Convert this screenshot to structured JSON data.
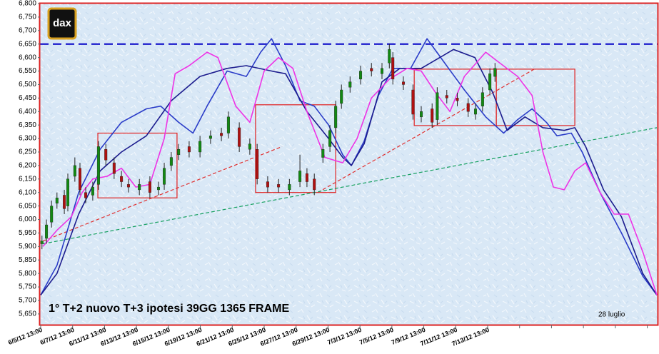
{
  "chart_data": {
    "type": "candlestick",
    "title": "1°  T+2  nuovo T+3 ipotesi 39GG 1365 FRAME",
    "annotation": "28 luglio",
    "logo": "dax",
    "ylim": [
      5610,
      6800
    ],
    "yticks": [
      {
        "value": 5650,
        "label": "5,650"
      },
      {
        "value": 5700,
        "label": "5,700"
      },
      {
        "value": 5750,
        "label": "5,750"
      },
      {
        "value": 5800,
        "label": "5,800"
      },
      {
        "value": 5850,
        "label": "5,850"
      },
      {
        "value": 5900,
        "label": "5,900"
      },
      {
        "value": 5950,
        "label": "5,950"
      },
      {
        "value": 6000,
        "label": "6,000"
      },
      {
        "value": 6050,
        "label": "6,050"
      },
      {
        "value": 6100,
        "label": "6,100"
      },
      {
        "value": 6150,
        "label": "6,150"
      },
      {
        "value": 6200,
        "label": "6,200"
      },
      {
        "value": 6250,
        "label": "6,250"
      },
      {
        "value": 6300,
        "label": "6,300"
      },
      {
        "value": 6350,
        "label": "6,350"
      },
      {
        "value": 6400,
        "label": "6,400"
      },
      {
        "value": 6450,
        "label": "6,450"
      },
      {
        "value": 6500,
        "label": "6,500"
      },
      {
        "value": 6550,
        "label": "6,550"
      },
      {
        "value": 6600,
        "label": "6,600"
      },
      {
        "value": 6650,
        "label": "6,650"
      },
      {
        "value": 6700,
        "label": "6,700"
      },
      {
        "value": 6750,
        "label": "6,750"
      },
      {
        "value": 6800,
        "label": "6,800"
      }
    ],
    "xlim": [
      0,
      19.3
    ],
    "xticks": [
      {
        "value": 0,
        "label": "6/5/12 13:00"
      },
      {
        "value": 1,
        "label": "6/7/12 13:00"
      },
      {
        "value": 2,
        "label": "6/11/12 13:00"
      },
      {
        "value": 3,
        "label": "6/13/12 13:00"
      },
      {
        "value": 4,
        "label": "6/15/12 13:00"
      },
      {
        "value": 5,
        "label": "6/19/12 13:00"
      },
      {
        "value": 6,
        "label": "6/21/12 13:00"
      },
      {
        "value": 7,
        "label": "6/25/12 13:00"
      },
      {
        "value": 8,
        "label": "6/27/12 13:00"
      },
      {
        "value": 9,
        "label": "6/29/12 13:00"
      },
      {
        "value": 10,
        "label": "7/3/12 13:00"
      },
      {
        "value": 11,
        "label": "7/5/12 13:00"
      },
      {
        "value": 12,
        "label": "7/9/12 13:00"
      },
      {
        "value": 13,
        "label": "7/11/12 13:00"
      },
      {
        "value": 14,
        "label": "7/13/12 13:00"
      },
      {
        "value": 15,
        "label": null
      },
      {
        "value": 16,
        "label": null
      },
      {
        "value": 17,
        "label": null
      },
      {
        "value": 18,
        "label": null
      },
      {
        "value": 19,
        "label": null
      }
    ],
    "candles": {
      "up_color": "#128a12",
      "down_color": "#b01010",
      "x": [
        0.04,
        0.18,
        0.34,
        0.51,
        0.74,
        0.85,
        1.07,
        1.23,
        1.41,
        1.63,
        1.81,
        2.04,
        2.3,
        2.53,
        2.75,
        3.09,
        3.42,
        3.69,
        3.87,
        4.09,
        4.32,
        4.65,
        4.99,
        5.32,
        5.66,
        5.88,
        6.22,
        6.55,
        6.78,
        7.11,
        7.45,
        7.79,
        8.12,
        8.34,
        8.57,
        8.84,
        9.06,
        9.24,
        9.42,
        9.69,
        10.02,
        10.36,
        10.69,
        10.92,
        11.03,
        11.36,
        11.66,
        11.92,
        12.26,
        12.42,
        12.72,
        13.05,
        13.39,
        13.62,
        13.84,
        14.07,
        14.23
      ],
      "open": [
        5910,
        5930,
        5990,
        6060,
        6090,
        6050,
        6160,
        6190,
        6100,
        6090,
        6130,
        6260,
        6210,
        6160,
        6130,
        6110,
        6140,
        6110,
        6130,
        6200,
        6240,
        6270,
        6250,
        6300,
        6320,
        6320,
        6340,
        6260,
        6260,
        6140,
        6130,
        6110,
        6140,
        6170,
        6150,
        6230,
        6270,
        6340,
        6430,
        6490,
        6520,
        6560,
        6540,
        6580,
        6600,
        6510,
        6480,
        6380,
        6410,
        6370,
        6460,
        6450,
        6430,
        6390,
        6420,
        6480,
        6530
      ],
      "high": [
        5940,
        6000,
        6070,
        6100,
        6110,
        6170,
        6230,
        6210,
        6120,
        6140,
        6290,
        6280,
        6230,
        6180,
        6150,
        6150,
        6160,
        6140,
        6210,
        6250,
        6280,
        6290,
        6310,
        6330,
        6340,
        6400,
        6360,
        6300,
        6280,
        6160,
        6150,
        6150,
        6240,
        6190,
        6170,
        6280,
        6350,
        6440,
        6500,
        6530,
        6570,
        6580,
        6580,
        6650,
        6620,
        6530,
        6500,
        6420,
        6430,
        6490,
        6480,
        6470,
        6450,
        6430,
        6490,
        6560,
        6580
      ],
      "low": [
        5890,
        5910,
        5970,
        6040,
        6020,
        6030,
        6140,
        6090,
        6060,
        6070,
        6110,
        6200,
        6150,
        6120,
        6100,
        6090,
        6080,
        6090,
        6110,
        6180,
        6220,
        6230,
        6230,
        6280,
        6290,
        6300,
        6250,
        6240,
        6130,
        6100,
        6100,
        6090,
        6120,
        6120,
        6090,
        6210,
        6250,
        6320,
        6410,
        6470,
        6500,
        6530,
        6520,
        6560,
        6500,
        6480,
        6370,
        6360,
        6340,
        6350,
        6430,
        6420,
        6380,
        6370,
        6400,
        6460,
        6510
      ],
      "close": [
        5920,
        5980,
        6050,
        6080,
        6040,
        6150,
        6200,
        6110,
        6080,
        6120,
        6270,
        6220,
        6170,
        6140,
        6120,
        6130,
        6100,
        6120,
        6190,
        6230,
        6260,
        6250,
        6290,
        6310,
        6310,
        6380,
        6270,
        6280,
        6150,
        6120,
        6120,
        6130,
        6180,
        6140,
        6110,
        6260,
        6330,
        6420,
        6480,
        6510,
        6550,
        6550,
        6560,
        6630,
        6520,
        6500,
        6390,
        6400,
        6360,
        6470,
        6450,
        6440,
        6400,
        6410,
        6470,
        6540,
        6560
      ]
    },
    "series": [
      {
        "color": "#2a3cc8",
        "x": [
          0,
          0.51,
          1.19,
          1.86,
          2.53,
          3.31,
          3.76,
          4.32,
          4.77,
          5.21,
          5.84,
          6.44,
          6.89,
          7.23,
          7.67,
          8.12,
          8.57,
          9.02,
          9.46,
          9.73,
          10.13,
          10.58,
          11.03,
          11.59,
          12.1,
          12.59,
          13.27,
          13.94,
          14.5,
          14.94,
          15.39,
          15.84,
          16.17,
          16.62,
          16.96,
          17.52,
          18.19,
          18.86,
          19.3
        ],
        "values": [
          5720,
          5830,
          6100,
          6260,
          6360,
          6410,
          6420,
          6360,
          6320,
          6420,
          6550,
          6530,
          6620,
          6670,
          6570,
          6440,
          6420,
          6350,
          6240,
          6200,
          6290,
          6460,
          6560,
          6560,
          6670,
          6590,
          6480,
          6380,
          6320,
          6370,
          6410,
          6360,
          6310,
          6320,
          6250,
          6100,
          5950,
          5790,
          5720
        ]
      },
      {
        "color": "#1c1c8e",
        "x": [
          0,
          0.51,
          1.19,
          1.86,
          2.53,
          3.31,
          4.09,
          4.99,
          5.84,
          6.44,
          7.23,
          7.67,
          8.34,
          9.02,
          9.46,
          9.73,
          10.13,
          10.69,
          11.25,
          11.92,
          12.93,
          13.6,
          14.16,
          14.61,
          15.17,
          15.73,
          16.4,
          16.73,
          17.07,
          17.63,
          18.19,
          18.86,
          19.3
        ],
        "values": [
          5720,
          5800,
          6020,
          6180,
          6250,
          6310,
          6440,
          6530,
          6560,
          6570,
          6550,
          6540,
          6400,
          6300,
          6230,
          6200,
          6280,
          6510,
          6560,
          6560,
          6630,
          6600,
          6470,
          6330,
          6380,
          6340,
          6330,
          6340,
          6270,
          6110,
          6010,
          5800,
          5720
        ]
      },
      {
        "color": "#ee33e6",
        "x": [
          0.07,
          0.51,
          0.96,
          1.3,
          1.63,
          2.08,
          2.53,
          2.98,
          3.42,
          3.87,
          4.21,
          4.65,
          5.21,
          5.55,
          6.11,
          6.55,
          7.0,
          7.45,
          7.9,
          8.34,
          8.9,
          9.46,
          9.91,
          10.36,
          10.92,
          11.48,
          11.92,
          12.37,
          12.82,
          13.27,
          13.94,
          14.38,
          14.94,
          15.39,
          15.73,
          16.06,
          16.4,
          16.73,
          17.07,
          17.52,
          17.96,
          18.41,
          18.86,
          19.3
        ],
        "values": [
          5900,
          5960,
          6010,
          6100,
          6150,
          6160,
          6190,
          6120,
          6130,
          6300,
          6540,
          6570,
          6620,
          6600,
          6420,
          6360,
          6550,
          6600,
          6560,
          6400,
          6230,
          6210,
          6300,
          6450,
          6520,
          6560,
          6550,
          6470,
          6400,
          6530,
          6620,
          6580,
          6530,
          6460,
          6250,
          6120,
          6110,
          6180,
          6210,
          6100,
          6020,
          6020,
          5880,
          5720
        ]
      }
    ],
    "hlines": [
      {
        "value": 6650,
        "color": "#1a1acc"
      }
    ],
    "trendlines": [
      {
        "color": "#e03030",
        "x": [
          0.07,
          7.56
        ],
        "values": [
          5920,
          6270
        ]
      },
      {
        "color": "#e03030",
        "x": [
          8.68,
          15.5
        ],
        "values": [
          6100,
          6560
        ]
      },
      {
        "color": "#16a060",
        "x": [
          0.07,
          19.3
        ],
        "values": [
          5910,
          6340
        ]
      }
    ],
    "boxes": [
      {
        "color": "#e02020",
        "x": [
          1.79,
          4.27
        ],
        "y": [
          6080,
          6320
        ]
      },
      {
        "color": "#e02020",
        "x": [
          6.73,
          9.24
        ],
        "y": [
          6100,
          6425
        ]
      },
      {
        "color": "#e02020",
        "x": [
          11.7,
          14.27
        ],
        "y": [
          6348,
          6557
        ]
      },
      {
        "color": "#e02020",
        "x": [
          14.27,
          16.73
        ],
        "y": [
          6348,
          6557
        ]
      }
    ]
  }
}
